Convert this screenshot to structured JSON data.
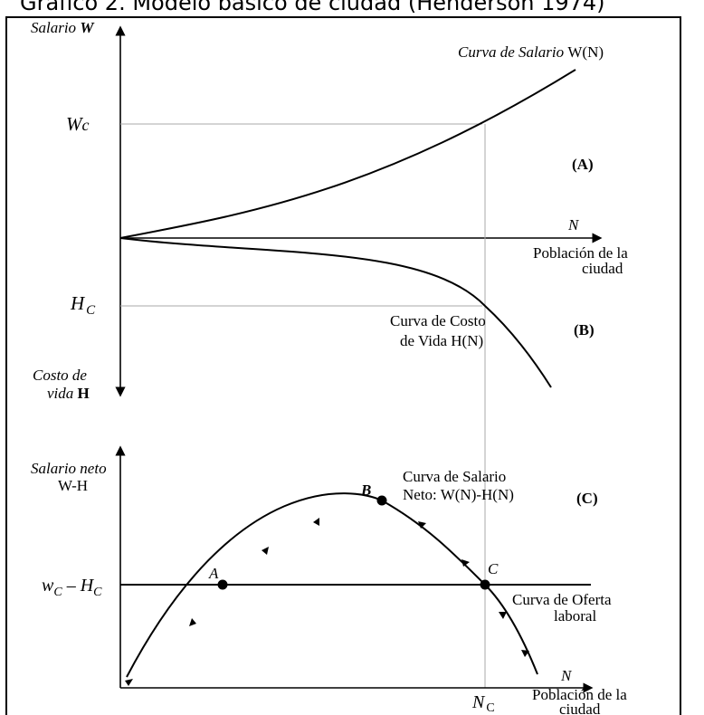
{
  "title": "Gráfico 2. Modelo básico de ciudad (Henderson 1974)",
  "panel_top": {
    "y_axis_top_italic": "Salario ",
    "y_axis_top_bold": "W",
    "y_axis_bottom_line1": "Costo de",
    "y_axis_bottom_line2_italic": "vida ",
    "y_axis_bottom_line2_bold": "H",
    "x_axis_symbol": "N",
    "x_axis_label_line1": "Población de la",
    "x_axis_label_line2": "ciudad",
    "wage_curve_label_italic": "Curva de Salario ",
    "wage_curve_label_normal": "W(N)",
    "wc_label_main": "W",
    "wc_label_sub": "c",
    "hc_label_main": "H",
    "hc_label_sub": "C",
    "cost_curve_label_line1": "Curva de Costo",
    "cost_curve_label_line2": "de Vida H(N)",
    "panel_a": "(A)",
    "panel_b": "(B)"
  },
  "panel_bottom": {
    "y_axis_line1": "Salario neto",
    "y_axis_line2": "W-H",
    "supply_level_main": "w",
    "supply_level_sub1": "C",
    "supply_level_dash": " – ",
    "supply_level_h": "H",
    "supply_level_sub2": "C",
    "net_curve_label_line1": "Curva de Salario",
    "net_curve_label_line2": "Neto: W(N)-H(N)",
    "panel_c": "(C)",
    "point_a": "A",
    "point_b": "B",
    "point_c": "C",
    "supply_curve_label_line1": "Curva de Oferta",
    "supply_curve_label_line2": "laboral",
    "x_axis_symbol": "N",
    "nc_label_main": "N",
    "nc_label_sub": "C",
    "x_axis_label_line1": "Población de la",
    "x_axis_label_line2": "ciudad"
  }
}
